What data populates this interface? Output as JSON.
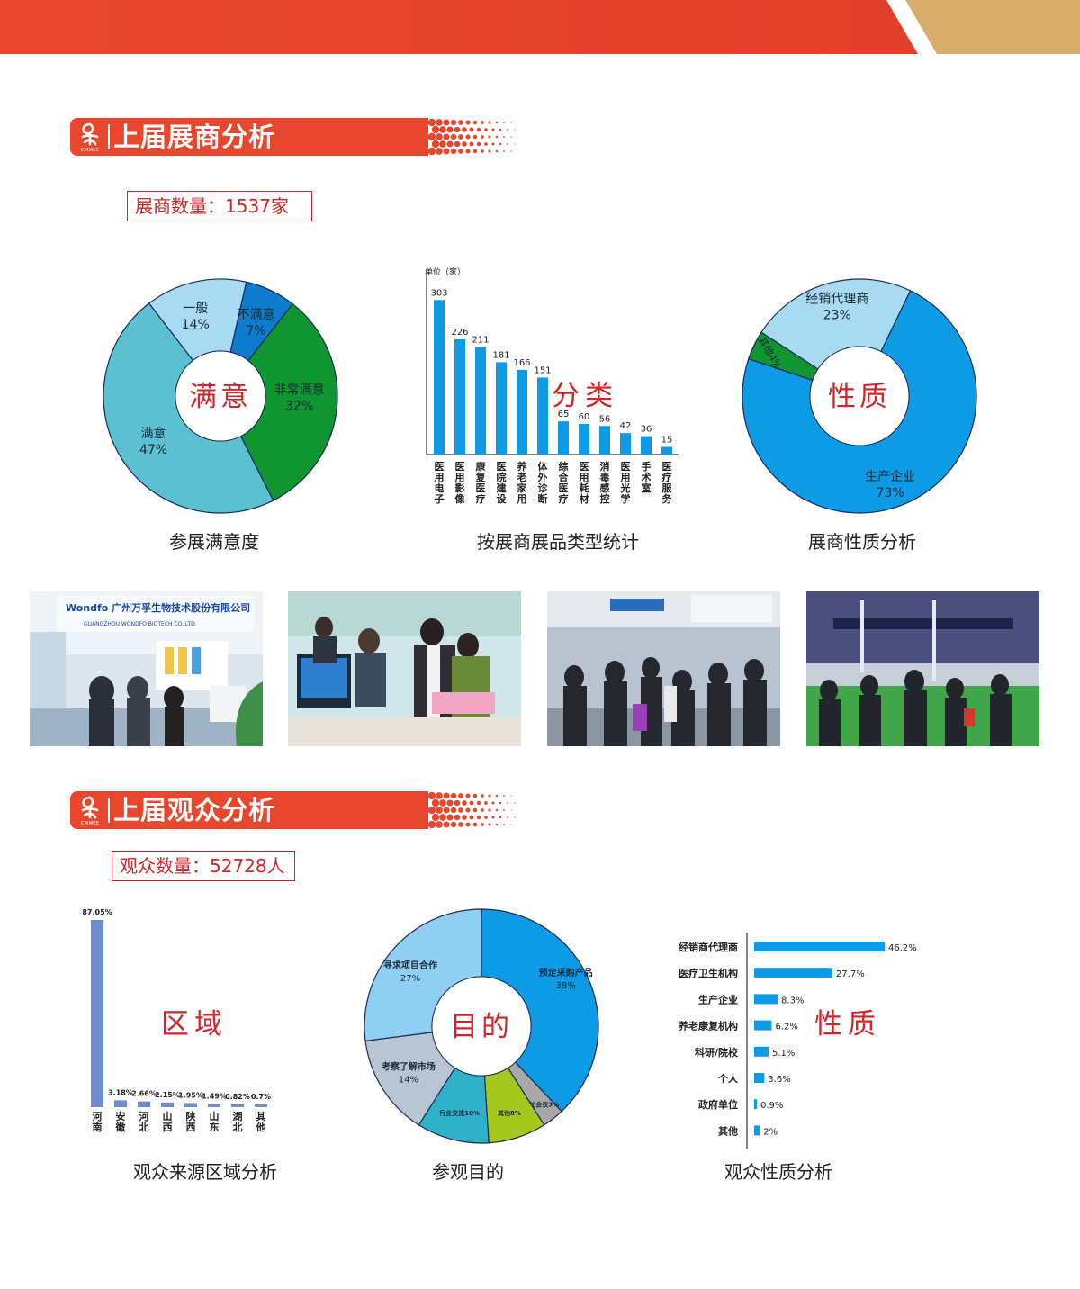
{
  "colors": {
    "red": "#e8472e",
    "gold": "#d8ad6a",
    "blue": "#0d9be6",
    "teal": "#5bc0d0",
    "green": "#0f9630",
    "darkred": "#d0252a"
  },
  "exhibitor_section": {
    "title": "上届展商分析",
    "logo_text": "CMMEE",
    "count_label": "展商数量：1537家",
    "charts": [
      {
        "type": "pie",
        "title": "参展满意度",
        "center_label": "满意",
        "slices": [
          {
            "label": "非常满意",
            "value": 32,
            "text": "32%",
            "color": "#0f9630"
          },
          {
            "label": "满意",
            "value": 47,
            "text": "47%",
            "color": "#5bc0d0"
          },
          {
            "label": "一般",
            "value": 14,
            "text": "14%",
            "color": "#a8daf2"
          },
          {
            "label": "不满意",
            "value": 7,
            "text": "7%",
            "color": "#0d7ccc"
          }
        ]
      },
      {
        "type": "bar",
        "title": "按展商展品类型统计",
        "unit_label": "单位（家）",
        "overlay_label": "分类",
        "categories": [
          "医用电子",
          "医用影像",
          "康复医疗",
          "医院建设",
          "养老家用",
          "体外诊断",
          "综合医疗",
          "医用耗材",
          "消毒感控",
          "医用光学",
          "手术室",
          "医疗服务"
        ],
        "values": [
          303,
          226,
          211,
          181,
          166,
          151,
          65,
          60,
          56,
          42,
          36,
          15
        ],
        "color": "#0d9be6"
      },
      {
        "type": "pie",
        "title": "展商性质分析",
        "center_label": "性质",
        "slices": [
          {
            "label": "经销代理商",
            "value": 23,
            "text": "23%",
            "color": "#a8daf2"
          },
          {
            "label": "生产企业",
            "value": 73,
            "text": "73%",
            "color": "#0d9be6"
          },
          {
            "label": "其他",
            "value": 4,
            "text": "4%",
            "color": "#0f9630"
          }
        ]
      }
    ]
  },
  "photos": [
    {
      "name": "booth-wondfo",
      "sign_top": "Wondfo 广州万孚生物技术股份有限公司",
      "sign_sub": "GUANGZHOU WONDFO BIOTECH CO.,LTD."
    },
    {
      "name": "booth-desk",
      "sign_top": "",
      "sign_sub": ""
    },
    {
      "name": "aisle-crowd",
      "sign_top": "",
      "sign_sub": ""
    },
    {
      "name": "hall-green-floor",
      "sign_top": "",
      "sign_sub": ""
    }
  ],
  "visitor_section": {
    "title": "上届观众分析",
    "logo_text": "CMMEE",
    "count_label": "观众数量：52728人",
    "charts": [
      {
        "type": "bar",
        "title": "观众来源区域分析",
        "overlay_label": "区域",
        "categories": [
          "河南",
          "安徽",
          "河北",
          "山西",
          "陕西",
          "山东",
          "湖北",
          "其他"
        ],
        "values": [
          87.05,
          3.18,
          2.66,
          2.15,
          1.95,
          1.49,
          0.82,
          0.7
        ],
        "value_labels": [
          "87.05%",
          "3.18%",
          "2.66%",
          "2.15%",
          "1.95%",
          "1.49%",
          "0.82%",
          "0.7%"
        ],
        "color": "#6f8ccb"
      },
      {
        "type": "pie",
        "title": "参观目的",
        "center_label": "目的",
        "slices": [
          {
            "label": "预定采购产品",
            "value": 38,
            "text": "38%",
            "color": "#0d9be6"
          },
          {
            "label": "参加会议",
            "value": 3,
            "text": "3%",
            "color": "#a8a8a8"
          },
          {
            "label": "其他",
            "value": 8,
            "text": "8%",
            "color": "#a6c81e"
          },
          {
            "label": "行业交流",
            "value": 10,
            "text": "10%",
            "color": "#2fb2c8"
          },
          {
            "label": "考察了解市场",
            "value": 14,
            "text": "14%",
            "color": "#b8c6d4"
          },
          {
            "label": "寻求项目合作",
            "value": 27,
            "text": "27%",
            "color": "#8fd0f2"
          }
        ]
      },
      {
        "type": "bar",
        "orientation": "horizontal",
        "title": "观众性质分析",
        "overlay_label": "性质",
        "categories": [
          "经销商代理商",
          "医疗卫生机构",
          "生产企业",
          "养老康复机构",
          "科研/院校",
          "个人",
          "政府单位",
          "其他"
        ],
        "values": [
          46.2,
          27.7,
          8.3,
          6.2,
          5.1,
          3.6,
          0.9,
          2
        ],
        "value_labels": [
          "46.2%",
          "27.7%",
          "8.3%",
          "6.2%",
          "5.1%",
          "3.6%",
          "0.9%",
          "2%"
        ],
        "color": "#0d9be6"
      }
    ]
  }
}
